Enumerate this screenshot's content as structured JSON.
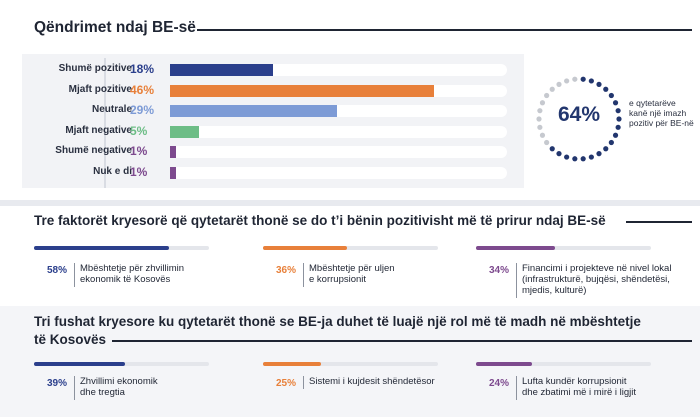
{
  "section1": {
    "title": "Qëndrimet ndaj BE-së",
    "chart_data": {
      "type": "bar",
      "orientation": "horizontal",
      "title": "Qëndrimet ndaj BE-së",
      "categories": [
        "Shumë pozitive",
        "Mjaft pozitive",
        "Neutrale",
        "Mjaft negative",
        "Shumë negative",
        "Nuk e di"
      ],
      "values": [
        18,
        46,
        29,
        5,
        1,
        1
      ],
      "value_labels": [
        "18%",
        "46%",
        "29%",
        "5%",
        "1%",
        "1%"
      ],
      "colors": [
        "#2b3f8c",
        "#e8803a",
        "#7d9bd6",
        "#6dbd86",
        "#7d4a8e",
        "#7d4a8e"
      ],
      "xlim": [
        0,
        100
      ],
      "grid": false
    },
    "donut": {
      "value": 64,
      "label": "64%",
      "text": "e qytetarëve kanë një imazh pozitiv për BE-në",
      "color_on": "#22366e",
      "color_off": "#c6c9cf"
    }
  },
  "section2": {
    "title": "Tre faktorët kryesorë që qytetarët thonë se do t’i bënin pozitivisht më të prirur ndaj BE-së",
    "chart_data": {
      "type": "bar",
      "categories": [
        "Mbështetje për zhvillimin ekonomik të Kosovës",
        "Mbështetje për uljen e korrupsionit",
        "Financimi i projekteve në nivel lokal (infrastrukturë, bujqësi, shëndetësi, mjedis, kulturë)"
      ],
      "values": [
        58,
        36,
        34
      ]
    },
    "items": [
      {
        "pct": "58%",
        "lines": [
          "Mbështetje për zhvillimin",
          "ekonomik të Kosovës"
        ],
        "color": "#2b3f8c"
      },
      {
        "pct": "36%",
        "lines": [
          "Mbështetje për uljen",
          "e korrupsionit"
        ],
        "color": "#e8803a"
      },
      {
        "pct": "34%",
        "lines": [
          "Financimi i projekteve në nivel lokal",
          "(infrastrukturë, bujqësi, shëndetësi,",
          "mjedis, kulturë)"
        ],
        "color": "#7d4a8e"
      }
    ]
  },
  "section3": {
    "title_lines": [
      "Tri fushat kryesore ku qytetarët thonë se BE-ja duhet të luajë një rol më të madh në mbështetje",
      "të Kosovës"
    ],
    "chart_data": {
      "type": "bar",
      "categories": [
        "Zhvillimi ekonomik dhe tregtia",
        "Sistemi i kujdesit shëndetësor",
        "Lufta kundër korrupsionit dhe zbatimi më i mirë i ligjit"
      ],
      "values": [
        39,
        25,
        24
      ]
    },
    "items": [
      {
        "pct": "39%",
        "lines": [
          "Zhvillimi ekonomik",
          "dhe tregtia"
        ],
        "color": "#2b3f8c"
      },
      {
        "pct": "25%",
        "lines": [
          "Sistemi i kujdesit shëndetësor"
        ],
        "color": "#e8803a"
      },
      {
        "pct": "24%",
        "lines": [
          "Lufta kundër korrupsionit",
          "dhe zbatimi më i mirë i ligjit"
        ],
        "color": "#7d4a8e"
      }
    ]
  }
}
